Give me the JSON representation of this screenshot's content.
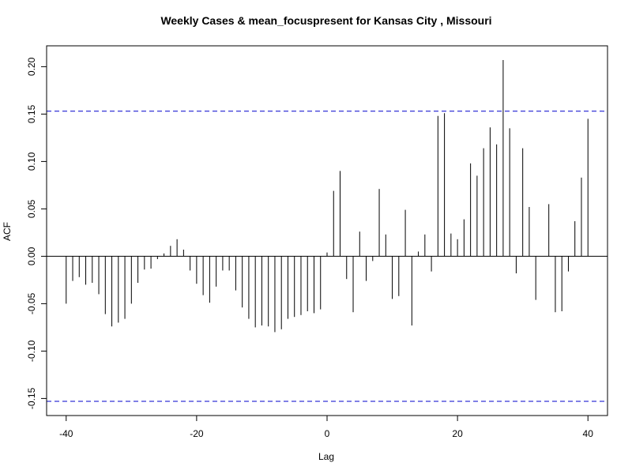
{
  "chart_data": {
    "type": "bar",
    "title": "Weekly Cases & mean_focuspresent for Kansas City , Missouri",
    "xlabel": "Lag",
    "ylabel": "ACF",
    "xlim": [
      -43,
      43
    ],
    "ylim": [
      -0.168,
      0.222
    ],
    "x_ticks": [
      -40,
      -20,
      0,
      20,
      40
    ],
    "x_tick_labels": [
      "-40",
      "-20",
      "0",
      "20",
      "40"
    ],
    "y_ticks": [
      -0.15,
      -0.1,
      -0.05,
      0.0,
      0.05,
      0.1,
      0.15,
      0.2
    ],
    "y_tick_labels": [
      "-0.15",
      "-0.10",
      "-0.05",
      "0.00",
      "0.05",
      "0.10",
      "0.15",
      "0.20"
    ],
    "confidence_bound": 0.153,
    "confidence_line_color": "#0000cc",
    "bar_color": "#000000",
    "grid": false,
    "lags": [
      -40,
      -39,
      -38,
      -37,
      -36,
      -35,
      -34,
      -33,
      -32,
      -31,
      -30,
      -29,
      -28,
      -27,
      -26,
      -25,
      -24,
      -23,
      -22,
      -21,
      -20,
      -19,
      -18,
      -17,
      -16,
      -15,
      -14,
      -13,
      -12,
      -11,
      -10,
      -9,
      -8,
      -7,
      -6,
      -5,
      -4,
      -3,
      -2,
      -1,
      0,
      1,
      2,
      3,
      4,
      5,
      6,
      7,
      8,
      9,
      10,
      11,
      12,
      13,
      14,
      15,
      16,
      17,
      18,
      19,
      20,
      21,
      22,
      23,
      24,
      25,
      26,
      27,
      28,
      29,
      30,
      31,
      32,
      33,
      34,
      35,
      36,
      37,
      38,
      39,
      40
    ],
    "values": [
      -0.05,
      -0.026,
      -0.022,
      -0.03,
      -0.028,
      -0.04,
      -0.061,
      -0.074,
      -0.07,
      -0.066,
      -0.05,
      -0.028,
      -0.014,
      -0.013,
      -0.003,
      0.003,
      0.011,
      0.018,
      0.007,
      -0.015,
      -0.029,
      -0.041,
      -0.049,
      -0.032,
      -0.015,
      -0.015,
      -0.036,
      -0.054,
      -0.066,
      -0.075,
      -0.073,
      -0.074,
      -0.08,
      -0.077,
      -0.066,
      -0.064,
      -0.062,
      -0.058,
      -0.06,
      -0.056,
      0.004,
      0.069,
      0.09,
      -0.024,
      -0.059,
      0.026,
      -0.026,
      -0.005,
      0.071,
      0.023,
      -0.045,
      -0.042,
      0.049,
      -0.073,
      0.005,
      0.023,
      -0.016,
      0.148,
      0.151,
      0.024,
      0.018,
      0.039,
      0.098,
      0.085,
      0.114,
      0.136,
      0.118,
      0.207,
      0.135,
      -0.018,
      0.114,
      0.052,
      -0.046,
      0.0,
      0.055,
      -0.059,
      -0.058,
      -0.016,
      0.037,
      0.083,
      0.145
    ]
  }
}
